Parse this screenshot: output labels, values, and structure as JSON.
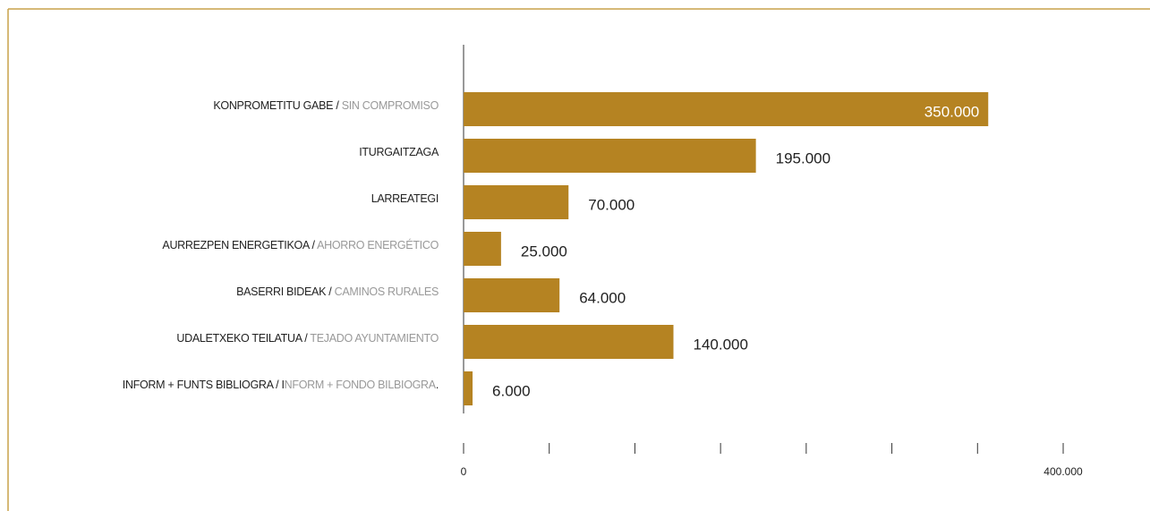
{
  "chart_data": {
    "type": "barh",
    "categories": [
      [
        "KONPROMETITU GABE / ",
        "SIN COMPROMISO"
      ],
      [
        "ITURGAITZAGA"
      ],
      [
        "LARREATEGI"
      ],
      [
        "AURREZPEN ENERGETIKOA / ",
        "AHORRO ENERGÉTICO"
      ],
      [
        "BASERRI BIDEAK / ",
        "CAMINOS RURALES"
      ],
      [
        "UDALETXEKO TEILATUA / ",
        "TEJADO AYUNTAMIENTO"
      ],
      [
        "INFORM + FUNTS BIBLIOGRA / I",
        "NFORM + FONDO BILBIOGRA",
        "."
      ]
    ],
    "values": [
      350000,
      195000,
      70000,
      25000,
      64000,
      140000,
      6000
    ],
    "value_labels": [
      "350.000",
      "195.000",
      "70.000",
      "25.000",
      "64.000",
      "140.000",
      "6.000"
    ],
    "color": "#b58322",
    "xlim": [
      0,
      400000
    ],
    "xticks": [
      0,
      {
        "value": 400000,
        "label": "400.000"
      }
    ],
    "xminor_ticks": [
      57143,
      114286,
      171429,
      228571,
      285714,
      342857
    ]
  }
}
